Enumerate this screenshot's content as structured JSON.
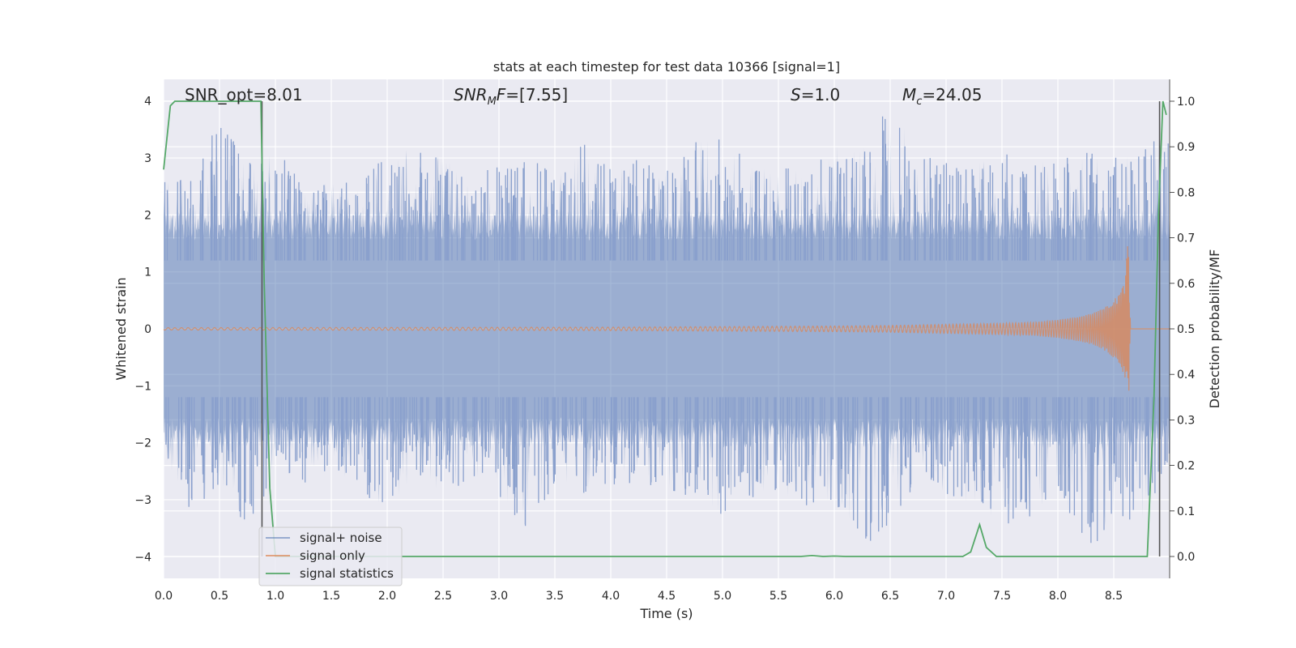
{
  "chart_data": {
    "type": "line",
    "title": "stats at each timestep for test data 10366 [signal=1]",
    "xlabel": "Time (s)",
    "ylabel": "Whitened strain",
    "y2label": "Detection probability/MF",
    "xlim": [
      0.0,
      9.0
    ],
    "ylim": [
      -4.38,
      4.38
    ],
    "y2lim": [
      -0.048,
      1.048
    ],
    "x_ticks": [
      "0.0",
      "0.5",
      "1.0",
      "1.5",
      "2.0",
      "2.5",
      "3.0",
      "3.5",
      "4.0",
      "4.5",
      "5.0",
      "5.5",
      "6.0",
      "6.5",
      "7.0",
      "7.5",
      "8.0",
      "8.5"
    ],
    "y_ticks": [
      "−4",
      "−3",
      "−2",
      "−1",
      "0",
      "1",
      "2",
      "3",
      "4"
    ],
    "y2_ticks": [
      "0.0",
      "0.1",
      "0.2",
      "0.3",
      "0.4",
      "0.5",
      "0.6",
      "0.7",
      "0.8",
      "0.9",
      "1.0"
    ],
    "grid": true,
    "legend_position": "lower-left",
    "background": "#eaeaf2",
    "annotations": [
      {
        "text": "SNR_opt=8.01",
        "x": 0.2,
        "y": 4.1
      },
      {
        "text": "SNR_MF=[7.55]",
        "x": 2.6,
        "y": 4.1
      },
      {
        "text": "S=1.0",
        "x": 5.6,
        "y": 4.1
      },
      {
        "text": "M_c=24.05",
        "x": 6.6,
        "y": 4.1
      }
    ],
    "vlines": [
      0.88,
      8.91
    ],
    "series": [
      {
        "name": "signal+ noise",
        "color": "#4c72b0",
        "opacity": 0.5,
        "envelope_x": [
          0.0,
          0.25,
          0.5,
          0.75,
          1.0,
          1.25,
          1.5,
          1.75,
          2.0,
          2.25,
          2.5,
          2.75,
          3.0,
          3.25,
          3.5,
          3.75,
          4.0,
          4.25,
          4.5,
          4.75,
          5.0,
          5.25,
          5.5,
          5.75,
          6.0,
          6.25,
          6.5,
          6.75,
          7.0,
          7.25,
          7.5,
          7.75,
          8.0,
          8.25,
          8.5,
          8.75,
          9.0
        ],
        "envelope_max": [
          2.8,
          2.7,
          3.7,
          2.9,
          3.2,
          2.5,
          2.6,
          2.6,
          3.1,
          3.2,
          3.0,
          2.7,
          2.9,
          3.1,
          2.7,
          3.3,
          2.8,
          3.0,
          2.8,
          3.3,
          3.4,
          2.9,
          2.8,
          3.0,
          3.3,
          3.2,
          4.0,
          3.1,
          3.0,
          2.9,
          3.1,
          3.0,
          3.1,
          3.1,
          3.0,
          3.3,
          3.5
        ],
        "envelope_min": [
          -2.2,
          -3.3,
          -2.7,
          -3.6,
          -2.4,
          -2.8,
          -2.4,
          -2.9,
          -3.2,
          -2.6,
          -3.0,
          -2.6,
          -3.1,
          -3.5,
          -2.7,
          -2.9,
          -2.8,
          -2.7,
          -3.0,
          -2.9,
          -3.3,
          -3.0,
          -2.9,
          -3.2,
          -3.1,
          -3.9,
          -3.4,
          -2.8,
          -3.0,
          -3.1,
          -3.5,
          -3.3,
          -2.9,
          -3.9,
          -3.5,
          -3.5,
          -2.2
        ]
      },
      {
        "name": "signal only",
        "color": "#dd8452",
        "envelope_x": [
          0.0,
          4.0,
          5.0,
          6.0,
          6.5,
          7.0,
          7.5,
          7.8,
          8.0,
          8.2,
          8.35,
          8.45,
          8.55,
          8.6,
          8.63,
          8.65
        ],
        "amplitude": [
          0.02,
          0.03,
          0.04,
          0.05,
          0.06,
          0.08,
          0.1,
          0.12,
          0.16,
          0.22,
          0.3,
          0.42,
          0.6,
          0.85,
          1.6,
          0.0
        ]
      },
      {
        "name": "signal statistics",
        "color": "#55a868",
        "axis": "right",
        "x": [
          0.0,
          0.06,
          0.1,
          0.2,
          0.5,
          0.8,
          0.87,
          0.9,
          0.95,
          1.0,
          2.0,
          3.0,
          4.0,
          5.0,
          5.7,
          5.8,
          5.9,
          6.0,
          6.1,
          6.5,
          7.0,
          7.15,
          7.22,
          7.3,
          7.36,
          7.45,
          8.0,
          8.5,
          8.8,
          8.86,
          8.9,
          8.94,
          8.97
        ],
        "y": [
          0.85,
          0.99,
          1.0,
          1.0,
          1.0,
          1.0,
          1.0,
          0.6,
          0.15,
          0.0,
          0.0,
          0.0,
          0.0,
          0.0,
          0.0,
          0.002,
          0.0,
          0.001,
          0.0,
          0.0,
          0.0,
          0.0,
          0.01,
          0.07,
          0.02,
          0.0,
          0.0,
          0.0,
          0.0,
          0.35,
          0.75,
          1.0,
          0.97
        ]
      }
    ]
  }
}
